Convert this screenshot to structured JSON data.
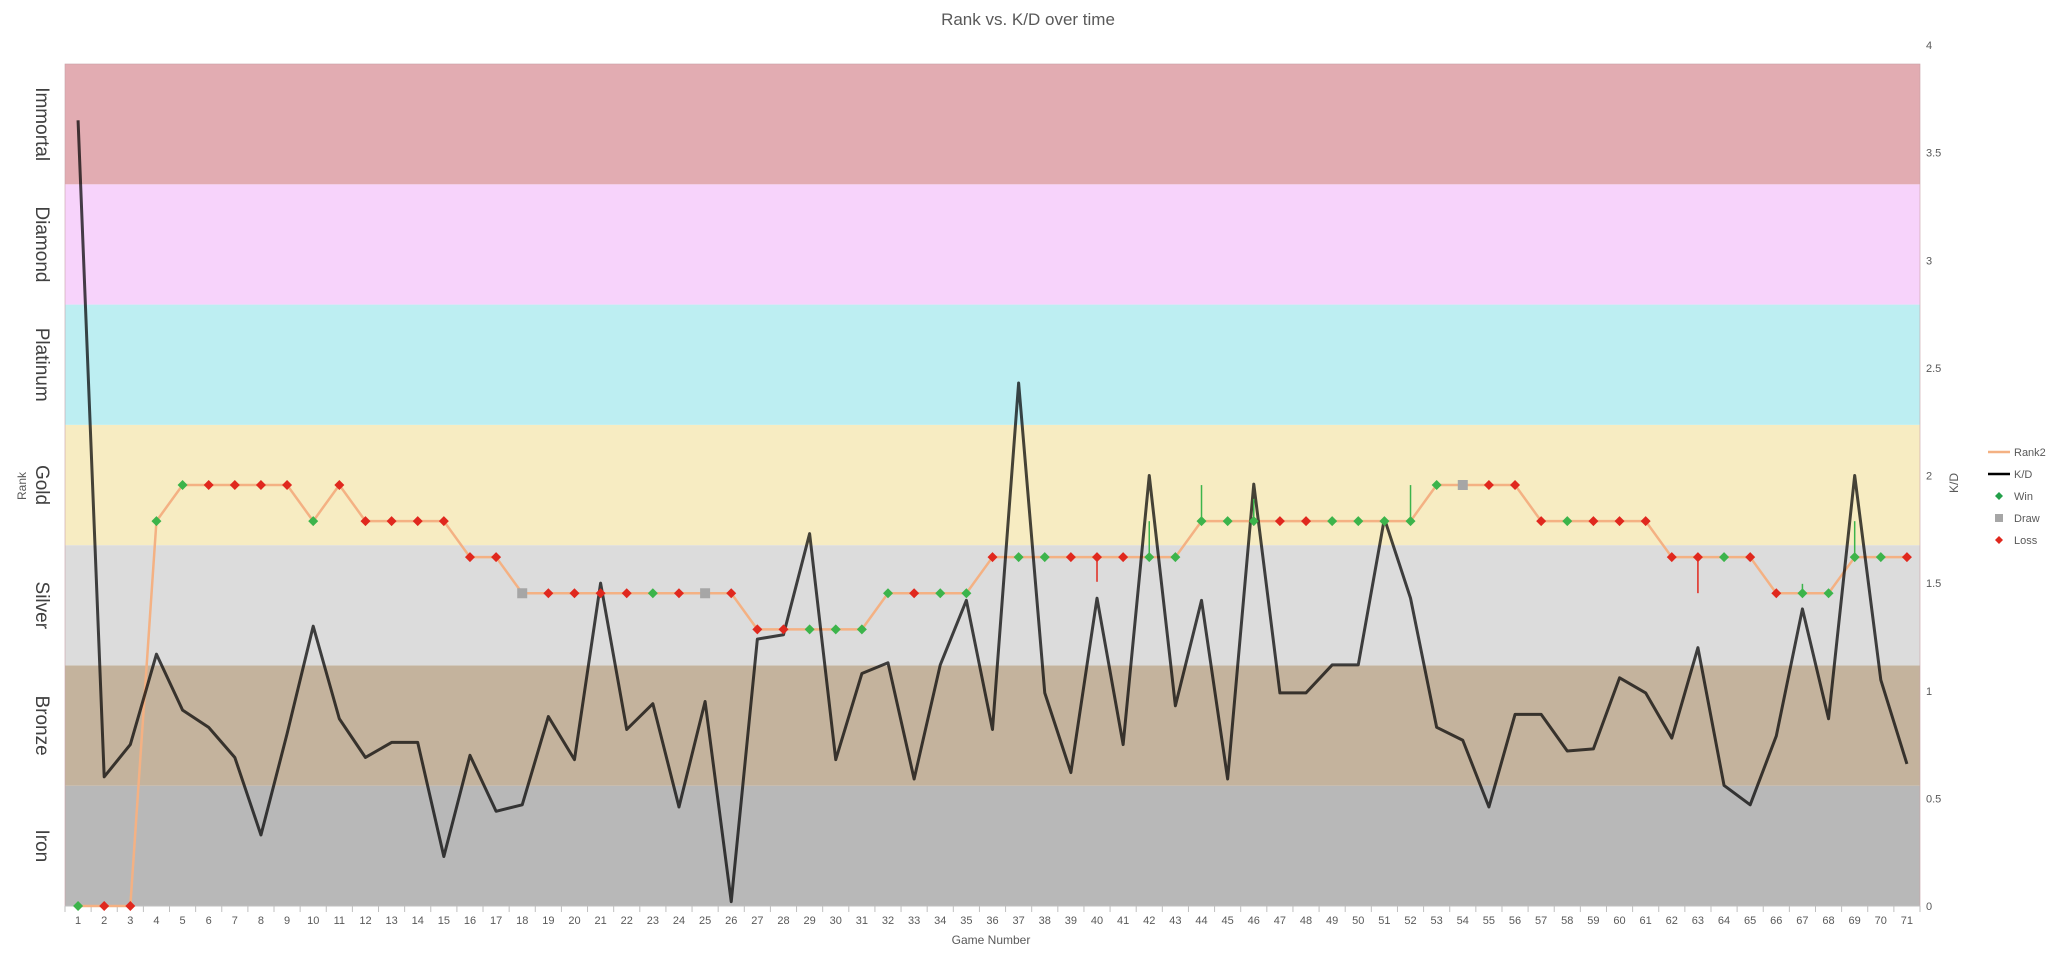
{
  "chart_data": {
    "type": "line",
    "title": "Rank vs. K/D over time",
    "xlabel": "Game Number",
    "ylabel_left": "Rank",
    "ylabel_right": "K/D",
    "x": [
      1,
      2,
      3,
      4,
      5,
      6,
      7,
      8,
      9,
      10,
      11,
      12,
      13,
      14,
      15,
      16,
      17,
      18,
      19,
      20,
      21,
      22,
      23,
      24,
      25,
      26,
      27,
      28,
      29,
      30,
      31,
      32,
      33,
      34,
      35,
      36,
      37,
      38,
      39,
      40,
      41,
      42,
      43,
      44,
      45,
      46,
      47,
      48,
      49,
      50,
      51,
      52,
      53,
      54,
      55,
      56,
      57,
      58,
      59,
      60,
      61,
      62,
      63,
      64,
      65,
      66,
      67,
      68,
      69,
      70,
      71
    ],
    "y2lim": [
      0,
      4
    ],
    "y2ticks": [
      "0",
      "0.5",
      "1",
      "1.5",
      "2",
      "2.5",
      "3",
      "3.5",
      "4"
    ],
    "ylim": [
      0,
      7
    ],
    "rank_bands": [
      {
        "name": "Iron",
        "color": "#b8b8b8"
      },
      {
        "name": "Bronze",
        "color": "#c4b39d"
      },
      {
        "name": "Silver",
        "color": "#dcdcdc"
      },
      {
        "name": "Gold",
        "color": "#f7ecc2"
      },
      {
        "name": "Platinum",
        "color": "#bdeef2"
      },
      {
        "name": "Diamond",
        "color": "#f7d3fb"
      },
      {
        "name": "Immortal",
        "color": "#e2acb2"
      }
    ],
    "series": [
      {
        "name": "Rank2",
        "color": "#f4b183",
        "values": [
          0,
          0,
          0,
          3.2,
          3.5,
          3.5,
          3.5,
          3.5,
          3.5,
          3.2,
          3.5,
          3.2,
          3.2,
          3.2,
          3.2,
          2.9,
          2.9,
          2.6,
          2.6,
          2.6,
          2.6,
          2.6,
          2.6,
          2.6,
          2.6,
          2.6,
          2.3,
          2.3,
          2.3,
          2.3,
          2.3,
          2.6,
          2.6,
          2.6,
          2.6,
          2.9,
          2.9,
          2.9,
          2.9,
          2.9,
          2.9,
          2.9,
          2.9,
          3.2,
          3.2,
          3.2,
          3.2,
          3.2,
          3.2,
          3.2,
          3.2,
          3.2,
          3.5,
          3.5,
          3.5,
          3.5,
          3.2,
          3.2,
          3.2,
          3.2,
          3.2,
          2.9,
          2.9,
          2.9,
          2.9,
          2.6,
          2.6,
          2.6,
          2.9,
          2.9,
          2.9
        ]
      },
      {
        "name": "K/D",
        "color": "#000000",
        "values": [
          3.65,
          0.6,
          0.75,
          1.17,
          0.91,
          0.83,
          0.69,
          0.33,
          0.8,
          1.3,
          0.87,
          0.69,
          0.76,
          0.76,
          0.23,
          0.7,
          0.44,
          0.47,
          0.88,
          0.68,
          1.5,
          0.82,
          0.94,
          0.46,
          0.95,
          0.02,
          1.24,
          1.26,
          1.73,
          0.68,
          1.08,
          1.13,
          0.59,
          1.12,
          1.42,
          0.82,
          2.43,
          0.99,
          0.62,
          1.43,
          0.75,
          2.0,
          0.93,
          1.42,
          0.59,
          1.96,
          0.99,
          0.99,
          1.12,
          1.12,
          1.8,
          1.43,
          0.83,
          0.77,
          0.46,
          0.89,
          0.89,
          0.72,
          0.73,
          1.06,
          0.99,
          0.78,
          1.2,
          0.56,
          0.47,
          0.79,
          1.38,
          0.87,
          2.0,
          1.05,
          0.66
        ]
      }
    ],
    "outcomes": [
      "W",
      "L",
      "L",
      "W",
      "W",
      "L",
      "L",
      "L",
      "L",
      "W",
      "L",
      "L",
      "L",
      "L",
      "L",
      "L",
      "L",
      "D",
      "L",
      "L",
      "L",
      "L",
      "W",
      "L",
      "D",
      "L",
      "L",
      "L",
      "W",
      "W",
      "W",
      "W",
      "L",
      "W",
      "W",
      "L",
      "W",
      "W",
      "L",
      "L",
      "L",
      "W",
      "W",
      "W",
      "W",
      "W",
      "L",
      "L",
      "W",
      "W",
      "W",
      "W",
      "W",
      "D",
      "L",
      "L",
      "L",
      "W",
      "L",
      "L",
      "L",
      "L",
      "L",
      "W",
      "L",
      "L",
      "W",
      "W",
      "W",
      "W",
      "L"
    ],
    "legend": [
      {
        "label": "Rank2",
        "kind": "line",
        "color": "#f4b183"
      },
      {
        "label": "K/D",
        "kind": "line",
        "color": "#000000"
      },
      {
        "label": "Win",
        "kind": "diamond",
        "color": "#23a04a"
      },
      {
        "label": "Draw",
        "kind": "square",
        "color": "#a6a6a6"
      },
      {
        "label": "Loss",
        "kind": "diamond",
        "color": "#e0281e"
      }
    ],
    "outcome_colors": {
      "W": "#3cb44b",
      "D": "#a6a6a6",
      "L": "#e0281e"
    },
    "band_line_color": "#404040",
    "legend_position": "right",
    "grid": false
  }
}
